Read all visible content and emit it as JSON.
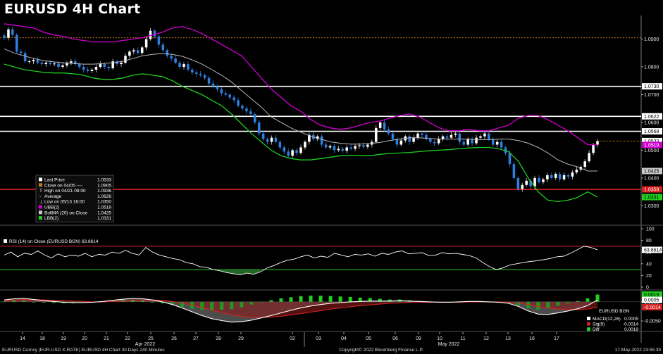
{
  "title": "EURUSD 4H Chart",
  "chart_data": {
    "type": "candlestick",
    "price_axis": {
      "range": [
        1.0235,
        1.0985
      ],
      "ticks": [
        "1.0900",
        "1.0800",
        "1.0700",
        "1.0600",
        "1.0500",
        "1.0400",
        "1.0300"
      ]
    },
    "horizontal_levels": [
      {
        "value": 1.073,
        "label": "1.0730",
        "color": "#ffffff"
      },
      {
        "value": 1.0622,
        "label": "1.0622",
        "color": "#ffffff"
      },
      {
        "value": 1.0568,
        "label": "1.0568",
        "color": "#ffffff"
      },
      {
        "value": 1.0359,
        "label": "1.0359",
        "color": "#d42020"
      },
      {
        "value": 1.0905,
        "label": "",
        "color": "#c07a1a",
        "dashed": true
      }
    ],
    "price_tags": [
      {
        "value": 1.0533,
        "label": "1.0533",
        "bg": "#ffffff",
        "fg": "#000000"
      },
      {
        "value": 1.0519,
        "label": "1.0519",
        "bg": "#d000d0",
        "fg": "#ffffff"
      },
      {
        "value": 1.0425,
        "label": "1.0425",
        "bg": "#c8c8c8",
        "fg": "#000000"
      },
      {
        "value": 1.0331,
        "label": "1.0331",
        "bg": "#1fd01f",
        "fg": "#000000"
      }
    ],
    "closes": [
      1.0905,
      1.0935,
      1.0915,
      1.0855,
      1.085,
      1.082,
      1.082,
      1.0825,
      1.0815,
      1.081,
      1.0815,
      1.081,
      1.0812,
      1.08,
      1.0805,
      1.0815,
      1.082,
      1.081,
      1.08,
      1.079,
      1.0785,
      1.079,
      1.08,
      1.081,
      1.08,
      1.0795,
      1.082,
      1.081,
      1.0815,
      1.084,
      1.0855,
      1.086,
      1.085,
      1.087,
      1.09,
      1.093,
      1.091,
      1.088,
      1.086,
      1.084,
      1.083,
      1.0815,
      1.08,
      1.081,
      1.079,
      1.078,
      1.0775,
      1.077,
      1.076,
      1.074,
      1.073,
      1.072,
      1.0705,
      1.07,
      1.069,
      1.068,
      1.066,
      1.065,
      1.064,
      1.063,
      1.06,
      1.056,
      1.054,
      1.053,
      1.0545,
      1.053,
      1.051,
      1.0495,
      1.048,
      1.05,
      1.049,
      1.051,
      1.053,
      1.0555,
      1.054,
      1.055,
      1.052,
      1.051,
      1.0515,
      1.05,
      1.0505,
      1.0498,
      1.051,
      1.0505,
      1.0515,
      1.0518,
      1.0512,
      1.052,
      1.053,
      1.058,
      1.06,
      1.0575,
      1.056,
      1.054,
      1.052,
      1.0535,
      1.055,
      1.053,
      1.0545,
      1.056,
      1.0555,
      1.054,
      1.053,
      1.0525,
      1.054,
      1.055,
      1.0545,
      1.0555,
      1.056,
      1.053,
      1.052,
      1.054,
      1.0525,
      1.0545,
      1.055,
      1.056,
      1.054,
      1.052,
      1.053,
      1.051,
      1.049,
      1.045,
      1.04,
      1.036,
      1.0375,
      1.039,
      1.037,
      1.04,
      1.0385,
      1.0395,
      1.041,
      1.04,
      1.0415,
      1.0395,
      1.041,
      1.0405,
      1.042,
      1.043,
      1.044,
      1.046,
      1.049,
      1.052,
      1.0533
    ],
    "bollinger": {
      "upper": [
        1.0955,
        1.095,
        1.0945,
        1.094,
        1.0925,
        1.0915,
        1.091,
        1.09,
        1.0895,
        1.089,
        1.089,
        1.089,
        1.0895,
        1.09,
        1.0905,
        1.0915,
        1.0925,
        1.094,
        1.0945,
        1.0935,
        1.092,
        1.09,
        1.088,
        1.086,
        1.084,
        1.08,
        1.076,
        1.072,
        1.069,
        1.066,
        1.064,
        1.061,
        1.059,
        1.058,
        1.0575,
        1.058,
        1.059,
        1.06,
        1.0605,
        1.0615,
        1.0625,
        1.063,
        1.062,
        1.06,
        1.058,
        1.057,
        1.057,
        1.0575,
        1.057,
        1.057,
        1.058,
        1.059,
        1.0615,
        1.0625,
        1.0625,
        1.061,
        1.059,
        1.057,
        1.0545,
        1.052,
        1.0519
      ],
      "middle": [
        1.0865,
        1.085,
        1.084,
        1.083,
        1.0822,
        1.0818,
        1.0815,
        1.0812,
        1.081,
        1.081,
        1.0812,
        1.0815,
        1.082,
        1.083,
        1.084,
        1.0845,
        1.0848,
        1.0845,
        1.0838,
        1.0825,
        1.081,
        1.079,
        1.077,
        1.0745,
        1.0715,
        1.0685,
        1.0655,
        1.062,
        1.06,
        1.058,
        1.0565,
        1.055,
        1.054,
        1.053,
        1.0525,
        1.0522,
        1.0522,
        1.0524,
        1.0528,
        1.0535,
        1.054,
        1.0545,
        1.0545,
        1.0542,
        1.054,
        1.054,
        1.054,
        1.054,
        1.0538,
        1.0538,
        1.054,
        1.054,
        1.0535,
        1.0525,
        1.051,
        1.049,
        1.0465,
        1.045,
        1.044,
        1.0425,
        1.0425
      ],
      "lower": [
        1.081,
        1.08,
        1.079,
        1.0785,
        1.078,
        1.0778,
        1.0778,
        1.0775,
        1.077,
        1.076,
        1.0755,
        1.0755,
        1.076,
        1.077,
        1.0775,
        1.077,
        1.0765,
        1.075,
        1.073,
        1.0715,
        1.07,
        1.068,
        1.066,
        1.063,
        1.0595,
        1.056,
        1.053,
        1.05,
        1.048,
        1.047,
        1.0465,
        1.0465,
        1.047,
        1.0475,
        1.048,
        1.0482,
        1.048,
        1.048,
        1.0485,
        1.0488,
        1.049,
        1.0492,
        1.0495,
        1.0498,
        1.05,
        1.0502,
        1.0505,
        1.0508,
        1.051,
        1.051,
        1.0505,
        1.0495,
        1.046,
        1.04,
        1.035,
        1.032,
        1.0315,
        1.032,
        1.033,
        1.035,
        1.0331
      ]
    },
    "rsi": {
      "label": "RSI (14)   on Close (EURUSD BGN) 63.8614",
      "range": [
        0,
        100
      ],
      "ticks": [
        "100",
        "80",
        "60",
        "40",
        "20",
        "0"
      ],
      "overbought": 70,
      "oversold": 30,
      "last_label": "63.8614",
      "values": [
        55,
        60,
        52,
        58,
        56,
        62,
        55,
        50,
        57,
        52,
        55,
        53,
        58,
        52,
        56,
        55,
        60,
        58,
        63,
        58,
        55,
        68,
        60,
        55,
        52,
        49,
        47,
        42,
        40,
        35,
        34,
        30,
        28,
        25,
        23,
        21,
        24,
        22,
        26,
        33,
        37,
        42,
        46,
        48,
        52,
        55,
        50,
        53,
        51,
        58,
        55,
        52,
        56,
        55,
        57,
        53,
        58,
        56,
        60,
        62,
        57,
        58,
        59,
        54,
        55,
        59,
        57,
        58,
        56,
        54,
        50,
        42,
        35,
        30,
        33,
        38,
        40,
        42,
        44,
        45,
        47,
        49,
        52,
        53,
        58,
        64,
        70,
        68,
        64
      ]
    },
    "macd": {
      "range": [
        -0.0072,
        0.002
      ],
      "ticks": [
        "0.0000",
        "-0.0050"
      ],
      "tags": [
        {
          "value": 0.0019,
          "label": "0.0019",
          "bg": "#1fd01f",
          "fg": "#000000"
        },
        {
          "value": 0.0005,
          "label": "0.0005",
          "bg": "#ffffff",
          "fg": "#000000"
        },
        {
          "value": -0.0014,
          "label": "-0.0014",
          "bg": "#d42020",
          "fg": "#ffffff"
        }
      ],
      "macd": [
        0.0005,
        0.0008,
        0.0009,
        0.0006,
        0.0003,
        0.0001,
        -0.0001,
        -0.0002,
        -0.0002,
        -0.0001,
        0.0001,
        0.0004,
        0.0007,
        0.0009,
        0.0008,
        0.0005,
        0.0,
        -0.0007,
        -0.0016,
        -0.0026,
        -0.0036,
        -0.0044,
        -0.0049,
        -0.0053,
        -0.0052,
        -0.0048,
        -0.0042,
        -0.0036,
        -0.0029,
        -0.0022,
        -0.0016,
        -0.0011,
        -0.0007,
        -0.0004,
        -0.0002,
        0.0,
        0.0001,
        0.0002,
        0.0002,
        0.0002,
        0.0003,
        0.0002,
        0.0001,
        0.0,
        -0.0001,
        -0.0001,
        0.0,
        0.0001,
        0.0001,
        0.0,
        -0.0001,
        -0.0004,
        -0.0012,
        -0.0024,
        -0.0032,
        -0.0033,
        -0.0029,
        -0.0024,
        -0.0018,
        -0.001,
        0.0005
      ],
      "signal": [
        0.0004,
        0.0005,
        0.0006,
        0.0006,
        0.0005,
        0.0004,
        0.0003,
        0.0002,
        0.0001,
        0.0,
        0.0,
        0.0001,
        0.0002,
        0.0004,
        0.0005,
        0.0005,
        0.0004,
        0.0001,
        -0.0003,
        -0.0008,
        -0.0015,
        -0.0022,
        -0.0028,
        -0.0034,
        -0.0038,
        -0.0041,
        -0.0041,
        -0.004,
        -0.0038,
        -0.0034,
        -0.0031,
        -0.0027,
        -0.0023,
        -0.0019,
        -0.0016,
        -0.0013,
        -0.001,
        -0.0008,
        -0.0006,
        -0.0004,
        -0.0003,
        -0.0002,
        -0.0001,
        -0.0001,
        -0.0001,
        -0.0001,
        -0.0001,
        0.0,
        0.0,
        0.0,
        0.0,
        -0.0001,
        -0.0003,
        -0.0007,
        -0.0012,
        -0.0016,
        -0.0019,
        -0.002,
        -0.002,
        -0.0019,
        -0.0014
      ]
    },
    "x_ticks": [
      "14",
      "18",
      "19",
      "20",
      "21",
      "22",
      "25",
      "26",
      "27",
      "28",
      "29",
      "02",
      "03",
      "04",
      "05",
      "06",
      "09",
      "10",
      "11",
      "12",
      "13",
      "16",
      "17"
    ],
    "month_labels": [
      "Apr 2022",
      "May 2022"
    ],
    "legend": [
      {
        "label": "Last Price",
        "value": "1.0533",
        "color": "#ffffff"
      },
      {
        "label": "Close on 04/05 ----",
        "value": "1.0905",
        "color": "#c07a1a"
      },
      {
        "label": "High on 04/21 08:00",
        "value": "1.0936",
        "color": "#ffffff",
        "marker": "T"
      },
      {
        "label": "Average",
        "value": "1.0626",
        "color": "#ffffff",
        "marker": "-"
      },
      {
        "label": "Low on 05/13 16:00",
        "value": "1.0350",
        "color": "#ffffff",
        "marker": "⊥"
      },
      {
        "label": "UBB(2)",
        "value": "1.0519",
        "color": "#d000d0"
      },
      {
        "label": "BollMA (20)  on Close",
        "value": "1.0425",
        "color": "#c8c8c8"
      },
      {
        "label": "LBB(2)",
        "value": "1.0331",
        "color": "#1fd01f"
      }
    ],
    "macd_legend": {
      "title": "EURUSD BGN",
      "items": [
        {
          "label": "MACD(12,26)",
          "value": "0.0005",
          "color": "#ffffff"
        },
        {
          "label": "Sig(9)",
          "value": "-0.0014",
          "color": "#d42020"
        },
        {
          "label": "Diff",
          "value": "0.0019",
          "color": "#1fd01f"
        }
      ]
    }
  },
  "footer": {
    "left": "EURUSD Curncy (EUR-USD X-RATE) EURUSD 4H Chart 30 Days 240 Minutes",
    "center": "Copyright© 2022 Bloomberg Finance L.P.",
    "right": "17-May-2022 23:55:39"
  }
}
